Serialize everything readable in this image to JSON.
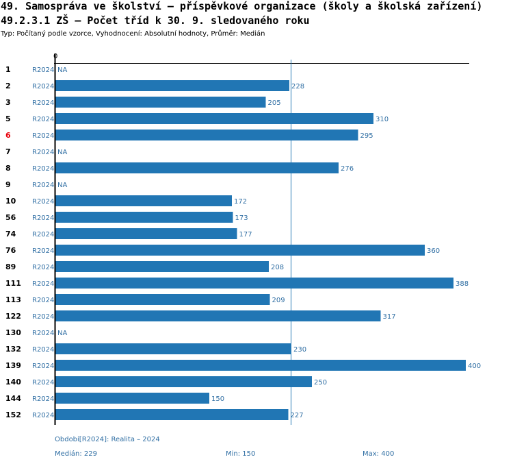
{
  "header": {
    "title_line1": "49. Samospráva ve školství – příspěvkové organizace (školy a školská zařízení)",
    "title_line2": "49.2.3.1 ZŠ – Počet tříd k 30. 9. sledovaného roku",
    "subtitle": "Typ: Počítaný podle vzorce, Vyhodnocení: Absolutní hodnoty, Průměr: Medián"
  },
  "chart_data": {
    "type": "bar",
    "orientation": "horizontal",
    "axis_zero_label": "0",
    "period": "R2024",
    "na_label": "NA",
    "x_max": 400,
    "median": 229,
    "rows": [
      {
        "label": "1",
        "value": null,
        "highlight": false
      },
      {
        "label": "2",
        "value": 228,
        "highlight": false
      },
      {
        "label": "3",
        "value": 205,
        "highlight": false
      },
      {
        "label": "5",
        "value": 310,
        "highlight": false
      },
      {
        "label": "6",
        "value": 295,
        "highlight": true
      },
      {
        "label": "7",
        "value": null,
        "highlight": false
      },
      {
        "label": "8",
        "value": 276,
        "highlight": false
      },
      {
        "label": "9",
        "value": null,
        "highlight": false
      },
      {
        "label": "10",
        "value": 172,
        "highlight": false
      },
      {
        "label": "56",
        "value": 173,
        "highlight": false
      },
      {
        "label": "74",
        "value": 177,
        "highlight": false
      },
      {
        "label": "76",
        "value": 360,
        "highlight": false
      },
      {
        "label": "89",
        "value": 208,
        "highlight": false
      },
      {
        "label": "111",
        "value": 388,
        "highlight": false
      },
      {
        "label": "113",
        "value": 209,
        "highlight": false
      },
      {
        "label": "122",
        "value": 317,
        "highlight": false
      },
      {
        "label": "130",
        "value": null,
        "highlight": false
      },
      {
        "label": "132",
        "value": 230,
        "highlight": false
      },
      {
        "label": "139",
        "value": 400,
        "highlight": false
      },
      {
        "label": "140",
        "value": 250,
        "highlight": false
      },
      {
        "label": "144",
        "value": 150,
        "highlight": false
      },
      {
        "label": "152",
        "value": 227,
        "highlight": false
      }
    ],
    "colors": {
      "bar": "#2176b4",
      "text": "#2f6ea3",
      "highlight": "#e8000b",
      "axis": "#000000"
    }
  },
  "footer": {
    "period_text": "Období[R2024]: Realita – 2024",
    "median_text": "Medián: 229",
    "min_text": "Min: 150",
    "max_text": "Max: 400"
  }
}
